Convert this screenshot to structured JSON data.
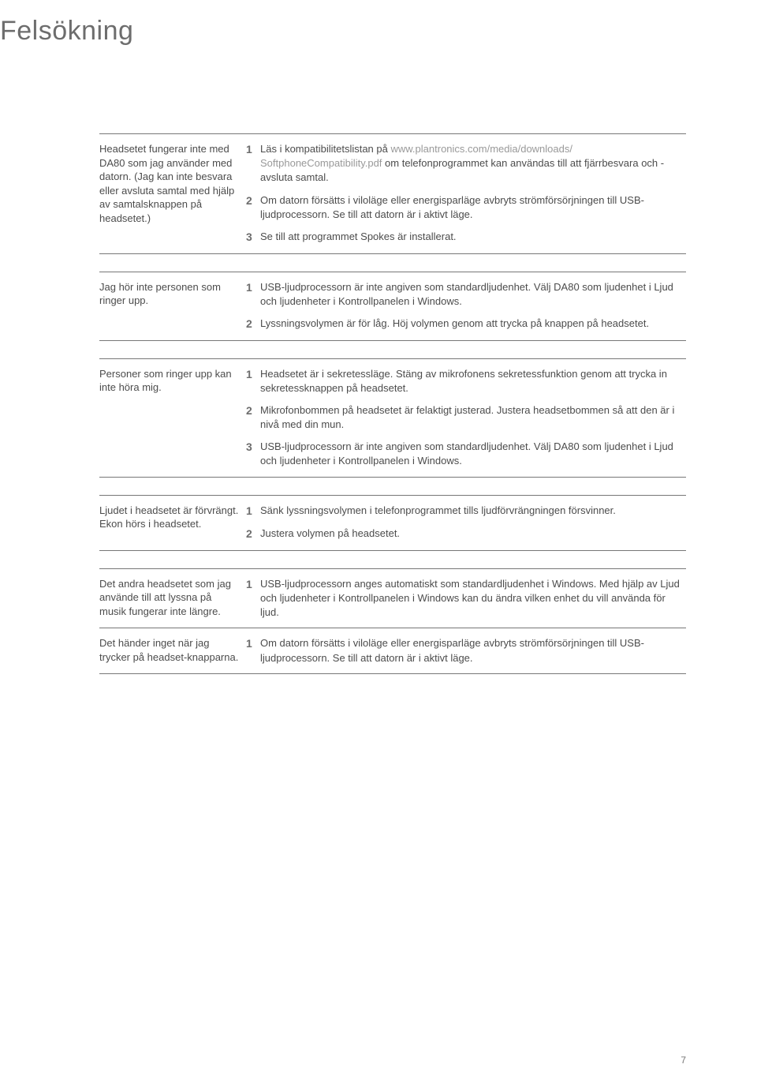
{
  "page": {
    "title": "Felsökning",
    "page_number": "7"
  },
  "colors": {
    "text": "#4c4c4c",
    "title": "#6d6d6d",
    "muted_link": "#999999",
    "rule": "#777777",
    "background": "#ffffff"
  },
  "sections": [
    {
      "problem": "Headsetet fungerar inte med DA80 som jag använder med datorn. (Jag kan inte besvara eller avsluta samtal med hjälp av samtalsknappen på headsetet.)",
      "solutions": [
        {
          "num": "1",
          "text_pre": "Läs i kompatibilitetslistan på ",
          "link1": "www.plantronics.com/media/downloads/",
          "link2": "SoftphoneCompatibility.pdf",
          "text_post": " om telefonprogrammet kan användas till att fjärrbesvara och -avsluta samtal."
        },
        {
          "num": "2",
          "text": "Om datorn försätts i viloläge eller energisparläge avbryts strömförsörjningen till USB-ljudprocessorn. Se till att datorn är i aktivt läge."
        },
        {
          "num": "3",
          "text": "Se till att programmet Spokes är installerat."
        }
      ]
    },
    {
      "problem": "Jag hör inte personen som ringer upp.",
      "solutions": [
        {
          "num": "1",
          "text": "USB-ljudprocessorn är inte angiven som standardljudenhet. Välj DA80 som ljudenhet i Ljud och ljudenheter i Kontrollpanelen i Windows."
        },
        {
          "num": "2",
          "text": "Lyssningsvolymen är för låg. Höj volymen genom att trycka på knappen på headsetet."
        }
      ]
    },
    {
      "problem": "Personer som ringer upp kan inte höra mig.",
      "solutions": [
        {
          "num": "1",
          "text": "Headsetet är i sekretessläge. Stäng av mikrofonens sekretessfunktion genom att trycka in sekretessknappen på headsetet."
        },
        {
          "num": "2",
          "text": "Mikrofonbommen på headsetet är felaktigt justerad. Justera headsetbommen så att den är i nivå med din mun."
        },
        {
          "num": "3",
          "text": "USB-ljudprocessorn är inte angiven som standardljudenhet. Välj DA80 som ljudenhet i Ljud och ljudenheter i Kontrollpanelen i Windows."
        }
      ]
    },
    {
      "problem": "Ljudet i headsetet är förvrängt. Ekon hörs i headsetet.",
      "solutions": [
        {
          "num": "1",
          "text": "Sänk lyssningsvolymen i telefonprogrammet tills ljudförvrängningen försvinner."
        },
        {
          "num": "2",
          "text": "Justera volymen på headsetet."
        }
      ]
    },
    {
      "problem": "Det andra headsetet som jag använde till att lyssna på musik fungerar inte längre.",
      "solutions": [
        {
          "num": "1",
          "text": "USB-ljudprocessorn anges automatiskt som standardljudenhet i Windows. Med hjälp av Ljud och ljudenheter i Kontrollpanelen i Windows kan du ändra vilken enhet du vill använda för ljud."
        }
      ]
    },
    {
      "problem": "Det händer inget när jag trycker på headset-knapparna.",
      "solutions": [
        {
          "num": "1",
          "text": "Om datorn försätts i viloläge eller energisparläge avbryts strömförsörjningen till USB-ljudprocessorn. Se till att datorn är i aktivt läge."
        }
      ]
    }
  ]
}
